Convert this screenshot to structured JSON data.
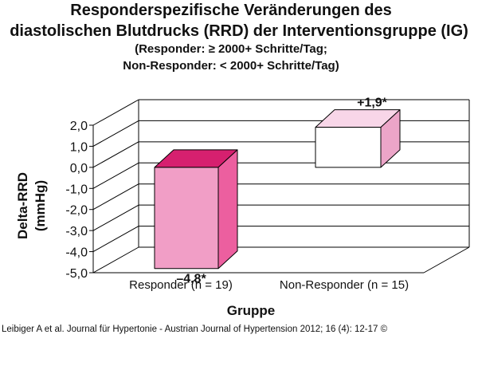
{
  "chart_data": {
    "type": "bar",
    "title": [
      "Responderspezifische Veränderungen des",
      "diastolischen Blutdrucks (RRD) der Interventionsgruppe (IG)"
    ],
    "subtitle": [
      "(Responder: ≥ 2000+ Schritte/Tag;",
      "Non-Responder: < 2000+ Schritte/Tag)"
    ],
    "xlabel": "Gruppe",
    "ylabel": [
      "Delta-RRD",
      "(mmHg)"
    ],
    "categories": [
      "Responder (n = 19)",
      "Non-Responder (n = 15)"
    ],
    "values": [
      -4.8,
      1.9
    ],
    "value_labels": [
      "–4,8*",
      "+1,9*"
    ],
    "ylim": [
      -5.0,
      2.0
    ],
    "yticks": [
      "2,0",
      "1,0",
      "0,0",
      "-1,0",
      "-2,0",
      "-3,0",
      "-4,0",
      "-5,0"
    ],
    "grid": true,
    "colors": {
      "responder_front": "#f19ec6",
      "responder_top": "#d6206f",
      "responder_side": "#ec5f9f",
      "nonresponder_front": "#ffffff",
      "nonresponder_top": "#f8d6e8",
      "nonresponder_side": "#eca5c8"
    }
  },
  "source": "Leibiger A et al. Journal für Hypertonie - Austrian Journal of Hypertension 2012; 16 (4): 12-17 ©"
}
